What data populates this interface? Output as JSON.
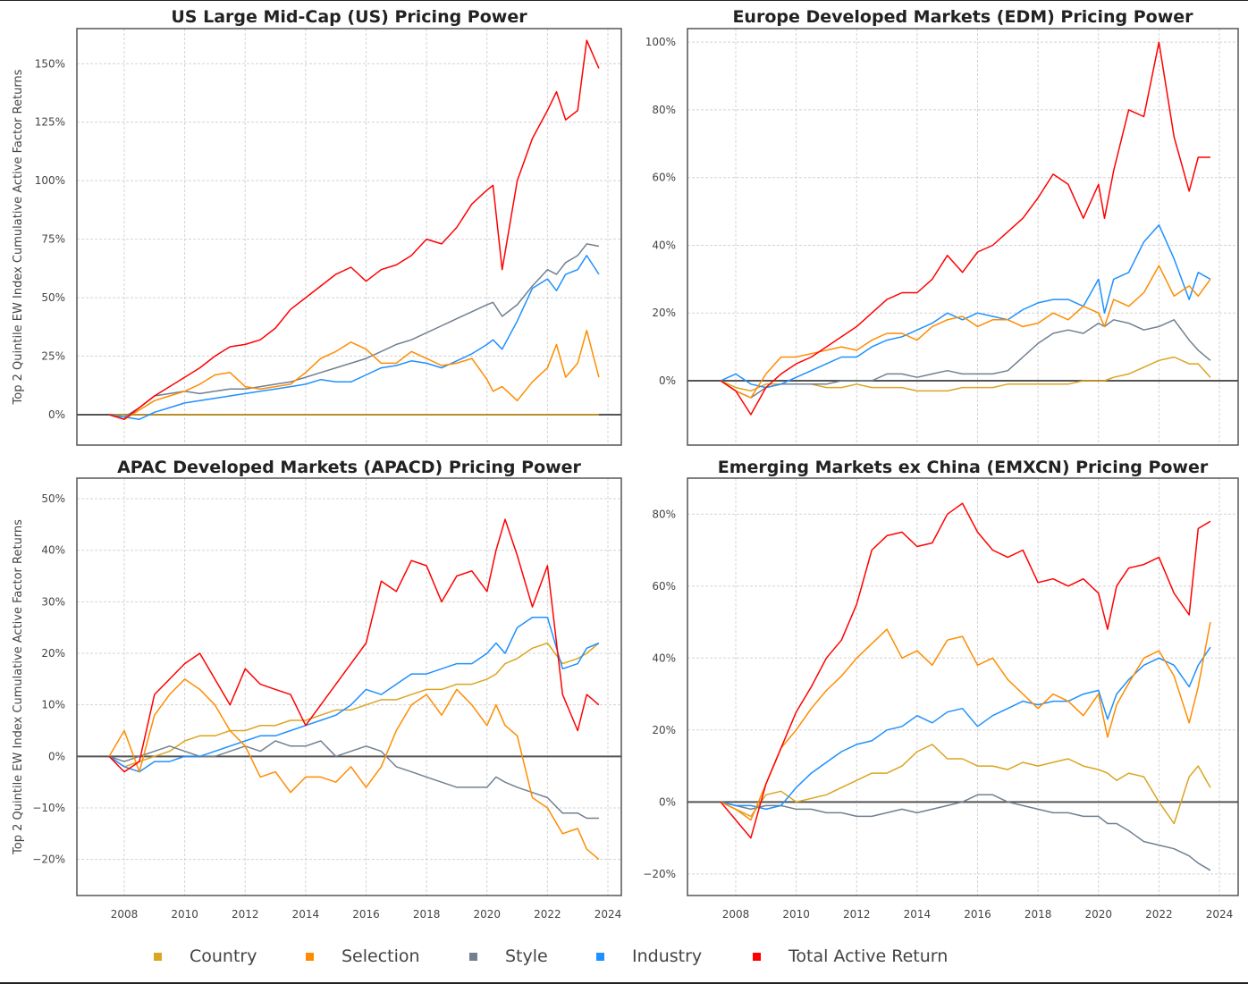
{
  "chart_data": [
    {
      "type": "line",
      "title": "US Large Mid-Cap (US) Pricing Power",
      "xlabel": "",
      "ylabel": "Top 2 Quintile EW Index Cumulative Active Factor Returns",
      "xlim": [
        2006.0,
        2024.5
      ],
      "ylim": [
        -13,
        165
      ],
      "x_ticks": [
        "2008",
        "2010",
        "2012",
        "2014",
        "2016",
        "2018",
        "2020",
        "2022",
        "2024"
      ],
      "x_tick_values": [
        2008,
        2010,
        2012,
        2014,
        2016,
        2018,
        2020,
        2022,
        2024
      ],
      "y_ticks": [
        "0%",
        "25%",
        "50%",
        "75%",
        "100%",
        "125%",
        "150%"
      ],
      "y_tick_values": [
        0,
        25,
        50,
        75,
        100,
        125,
        150
      ],
      "grid": true,
      "x": [
        2007.5,
        2008.0,
        2008.5,
        2009.0,
        2009.5,
        2010.0,
        2010.5,
        2011.0,
        2011.5,
        2012.0,
        2012.5,
        2013.0,
        2013.5,
        2014.0,
        2014.5,
        2015.0,
        2015.5,
        2016.0,
        2016.5,
        2017.0,
        2017.5,
        2018.0,
        2018.5,
        2019.0,
        2019.5,
        2020.0,
        2020.2,
        2020.5,
        2021.0,
        2021.5,
        2022.0,
        2022.3,
        2022.6,
        2023.0,
        2023.3,
        2023.7
      ],
      "series": [
        {
          "name": "Country",
          "values": [
            0,
            0,
            0,
            0,
            0,
            0,
            0,
            0,
            0,
            0,
            0,
            0,
            0,
            0,
            0,
            0,
            0,
            0,
            0,
            0,
            0,
            0,
            0,
            0,
            0,
            0,
            0,
            0,
            0,
            0,
            0,
            0,
            0,
            0,
            0,
            0
          ]
        },
        {
          "name": "Selection",
          "values": [
            0,
            -2,
            2,
            6,
            8,
            10,
            13,
            17,
            18,
            12,
            11,
            12,
            13,
            18,
            24,
            27,
            31,
            28,
            22,
            22,
            27,
            24,
            21,
            22,
            24,
            15,
            10,
            12,
            6,
            14,
            20,
            30,
            16,
            22,
            36,
            16
          ]
        },
        {
          "name": "Style",
          "values": [
            0,
            -1,
            3,
            8,
            9,
            10,
            9,
            10,
            11,
            11,
            12,
            13,
            14,
            16,
            18,
            20,
            22,
            24,
            27,
            30,
            32,
            35,
            38,
            41,
            44,
            47,
            48,
            42,
            47,
            55,
            62,
            60,
            65,
            68,
            73,
            72
          ]
        },
        {
          "name": "Industry",
          "values": [
            0,
            -1,
            -2,
            1,
            3,
            5,
            6,
            7,
            8,
            9,
            10,
            11,
            12,
            13,
            15,
            14,
            14,
            17,
            20,
            21,
            23,
            22,
            20,
            23,
            26,
            30,
            32,
            28,
            40,
            54,
            58,
            53,
            60,
            62,
            68,
            60
          ]
        },
        {
          "name": "Total Active Return",
          "values": [
            0,
            -2,
            3,
            8,
            12,
            16,
            20,
            25,
            29,
            30,
            32,
            37,
            45,
            50,
            55,
            60,
            63,
            57,
            62,
            64,
            68,
            75,
            73,
            80,
            90,
            96,
            98,
            62,
            100,
            118,
            130,
            138,
            126,
            130,
            160,
            148
          ]
        }
      ]
    },
    {
      "type": "line",
      "title": "Europe Developed Markets (EDM) Pricing Power",
      "xlabel": "",
      "ylabel": "",
      "xlim": [
        2006.0,
        2024.5
      ],
      "ylim": [
        -19,
        104
      ],
      "x_ticks": [
        "2008",
        "2010",
        "2012",
        "2014",
        "2016",
        "2018",
        "2020",
        "2022",
        "2024"
      ],
      "x_tick_values": [
        2008,
        2010,
        2012,
        2014,
        2016,
        2018,
        2020,
        2022,
        2024
      ],
      "y_ticks": [
        "0%",
        "20%",
        "40%",
        "60%",
        "80%",
        "100%"
      ],
      "y_tick_values": [
        0,
        20,
        40,
        60,
        80,
        100
      ],
      "grid": true,
      "x": [
        2007.5,
        2008.0,
        2008.5,
        2009.0,
        2009.5,
        2010.0,
        2010.5,
        2011.0,
        2011.5,
        2012.0,
        2012.5,
        2013.0,
        2013.5,
        2014.0,
        2014.5,
        2015.0,
        2015.5,
        2016.0,
        2016.5,
        2017.0,
        2017.5,
        2018.0,
        2018.5,
        2019.0,
        2019.5,
        2020.0,
        2020.2,
        2020.5,
        2021.0,
        2021.5,
        2022.0,
        2022.5,
        2023.0,
        2023.3,
        2023.7
      ],
      "series": [
        {
          "name": "Country",
          "values": [
            0,
            -2,
            -3,
            -1,
            -1,
            -1,
            -1,
            -2,
            -2,
            -1,
            -2,
            -2,
            -2,
            -3,
            -3,
            -3,
            -2,
            -2,
            -2,
            -1,
            -1,
            -1,
            -1,
            -1,
            0,
            0,
            0,
            1,
            2,
            4,
            6,
            7,
            5,
            5,
            1
          ]
        },
        {
          "name": "Selection",
          "values": [
            0,
            -3,
            -5,
            2,
            7,
            7,
            8,
            9,
            10,
            9,
            12,
            14,
            14,
            12,
            16,
            18,
            19,
            16,
            18,
            18,
            16,
            17,
            20,
            18,
            22,
            20,
            16,
            24,
            22,
            26,
            34,
            25,
            28,
            25,
            30
          ]
        },
        {
          "name": "Style",
          "values": [
            0,
            -3,
            -5,
            -2,
            -1,
            -1,
            -1,
            -1,
            0,
            0,
            0,
            2,
            2,
            1,
            2,
            3,
            2,
            2,
            2,
            3,
            7,
            11,
            14,
            15,
            14,
            17,
            16,
            18,
            17,
            15,
            16,
            18,
            12,
            9,
            6
          ]
        },
        {
          "name": "Industry",
          "values": [
            0,
            2,
            -1,
            -2,
            -1,
            1,
            3,
            5,
            7,
            7,
            10,
            12,
            13,
            15,
            17,
            20,
            18,
            20,
            19,
            18,
            21,
            23,
            24,
            24,
            22,
            30,
            20,
            30,
            32,
            41,
            46,
            36,
            24,
            32,
            30
          ]
        },
        {
          "name": "Total Active Return",
          "values": [
            0,
            -3,
            -10,
            -2,
            2,
            5,
            7,
            10,
            13,
            16,
            20,
            24,
            26,
            26,
            30,
            37,
            32,
            38,
            40,
            44,
            48,
            54,
            61,
            58,
            48,
            58,
            48,
            62,
            80,
            78,
            100,
            72,
            56,
            66,
            66
          ]
        }
      ]
    },
    {
      "type": "line",
      "title": "APAC Developed Markets (APACD) Pricing Power",
      "xlabel": "",
      "ylabel": "Top 2 Quintile EW Index Cumulative Active Factor Returns",
      "xlim": [
        2006.0,
        2024.5
      ],
      "ylim": [
        -27,
        54
      ],
      "x_ticks": [
        "2008",
        "2010",
        "2012",
        "2014",
        "2016",
        "2018",
        "2020",
        "2022",
        "2024"
      ],
      "x_tick_values": [
        2008,
        2010,
        2012,
        2014,
        2016,
        2018,
        2020,
        2022,
        2024
      ],
      "y_ticks": [
        "−20%",
        "−10%",
        "0%",
        "10%",
        "20%",
        "30%",
        "40%",
        "50%"
      ],
      "y_tick_values": [
        -20,
        -10,
        0,
        10,
        20,
        30,
        40,
        50
      ],
      "grid": true,
      "x": [
        2007.5,
        2008.0,
        2008.5,
        2009.0,
        2009.5,
        2010.0,
        2010.5,
        2011.0,
        2011.5,
        2012.0,
        2012.5,
        2013.0,
        2013.5,
        2014.0,
        2014.5,
        2015.0,
        2015.5,
        2016.0,
        2016.5,
        2017.0,
        2017.5,
        2018.0,
        2018.5,
        2019.0,
        2019.5,
        2020.0,
        2020.3,
        2020.6,
        2021.0,
        2021.5,
        2022.0,
        2022.5,
        2023.0,
        2023.3,
        2023.7
      ],
      "series": [
        {
          "name": "Country",
          "values": [
            0,
            -2,
            -1,
            0,
            1,
            3,
            4,
            4,
            5,
            5,
            6,
            6,
            7,
            7,
            8,
            9,
            9,
            10,
            11,
            11,
            12,
            13,
            13,
            14,
            14,
            15,
            16,
            18,
            19,
            21,
            22,
            18,
            19,
            20,
            22
          ]
        },
        {
          "name": "Selection",
          "values": [
            0,
            5,
            -3,
            8,
            12,
            15,
            13,
            10,
            5,
            2,
            -4,
            -3,
            -7,
            -4,
            -4,
            -5,
            -2,
            -6,
            -2,
            5,
            10,
            12,
            8,
            13,
            10,
            6,
            10,
            6,
            4,
            -8,
            -10,
            -15,
            -14,
            -18,
            -20
          ]
        },
        {
          "name": "Style",
          "values": [
            0,
            -1,
            0,
            1,
            2,
            1,
            0,
            0,
            1,
            2,
            1,
            3,
            2,
            2,
            3,
            0,
            1,
            2,
            1,
            -2,
            -3,
            -4,
            -5,
            -6,
            -6,
            -6,
            -4,
            -5,
            -6,
            -7,
            -8,
            -11,
            -11,
            -12,
            -12
          ]
        },
        {
          "name": "Industry",
          "values": [
            0,
            -2,
            -3,
            -1,
            -1,
            0,
            0,
            1,
            2,
            3,
            4,
            4,
            5,
            6,
            7,
            8,
            10,
            13,
            12,
            14,
            16,
            16,
            17,
            18,
            18,
            20,
            22,
            20,
            25,
            27,
            27,
            17,
            18,
            21,
            22
          ]
        },
        {
          "name": "Total Active Return",
          "values": [
            0,
            -3,
            -1,
            12,
            15,
            18,
            20,
            15,
            10,
            17,
            14,
            13,
            12,
            6,
            10,
            14,
            18,
            22,
            34,
            32,
            38,
            37,
            30,
            35,
            36,
            32,
            40,
            46,
            39,
            29,
            37,
            12,
            5,
            12,
            10
          ]
        }
      ]
    },
    {
      "type": "line",
      "title": "Emerging Markets ex China (EMXCN) Pricing Power",
      "xlabel": "",
      "ylabel": "",
      "xlim": [
        2006.0,
        2024.5
      ],
      "ylim": [
        -26,
        90
      ],
      "x_ticks": [
        "2008",
        "2010",
        "2012",
        "2014",
        "2016",
        "2018",
        "2020",
        "2022",
        "2024"
      ],
      "x_tick_values": [
        2008,
        2010,
        2012,
        2014,
        2016,
        2018,
        2020,
        2022,
        2024
      ],
      "y_ticks": [
        "−20%",
        "0%",
        "20%",
        "40%",
        "60%",
        "80%"
      ],
      "y_tick_values": [
        -20,
        0,
        20,
        40,
        60,
        80
      ],
      "grid": true,
      "x": [
        2007.5,
        2008.0,
        2008.5,
        2009.0,
        2009.5,
        2010.0,
        2010.5,
        2011.0,
        2011.5,
        2012.0,
        2012.5,
        2013.0,
        2013.5,
        2014.0,
        2014.5,
        2015.0,
        2015.5,
        2016.0,
        2016.5,
        2017.0,
        2017.5,
        2018.0,
        2018.5,
        2019.0,
        2019.5,
        2020.0,
        2020.3,
        2020.6,
        2021.0,
        2021.5,
        2022.0,
        2022.5,
        2023.0,
        2023.3,
        2023.7
      ],
      "series": [
        {
          "name": "Country",
          "values": [
            0,
            -2,
            -4,
            2,
            3,
            0,
            1,
            2,
            4,
            6,
            8,
            8,
            10,
            14,
            16,
            12,
            12,
            10,
            10,
            9,
            11,
            10,
            11,
            12,
            10,
            9,
            8,
            6,
            8,
            7,
            0,
            -6,
            7,
            10,
            4
          ]
        },
        {
          "name": "Selection",
          "values": [
            0,
            -2,
            -5,
            5,
            15,
            20,
            26,
            31,
            35,
            40,
            44,
            48,
            40,
            42,
            38,
            45,
            46,
            38,
            40,
            34,
            30,
            26,
            30,
            28,
            24,
            30,
            18,
            27,
            33,
            40,
            42,
            35,
            22,
            32,
            50
          ]
        },
        {
          "name": "Style",
          "values": [
            0,
            -1,
            -2,
            -1,
            -1,
            -2,
            -2,
            -3,
            -3,
            -4,
            -4,
            -3,
            -2,
            -3,
            -2,
            -1,
            0,
            2,
            2,
            0,
            -1,
            -2,
            -3,
            -3,
            -4,
            -4,
            -6,
            -6,
            -8,
            -11,
            -12,
            -13,
            -15,
            -17,
            -19
          ]
        },
        {
          "name": "Industry",
          "values": [
            0,
            -1,
            -1,
            -2,
            -1,
            4,
            8,
            11,
            14,
            16,
            17,
            20,
            21,
            24,
            22,
            25,
            26,
            21,
            24,
            26,
            28,
            27,
            28,
            28,
            30,
            31,
            23,
            30,
            34,
            38,
            40,
            38,
            32,
            38,
            43
          ]
        },
        {
          "name": "Total Active Return",
          "values": [
            0,
            -5,
            -10,
            5,
            15,
            25,
            32,
            40,
            45,
            55,
            70,
            74,
            75,
            71,
            72,
            80,
            83,
            75,
            70,
            68,
            70,
            61,
            62,
            60,
            62,
            58,
            48,
            60,
            65,
            66,
            68,
            58,
            52,
            76,
            78
          ]
        }
      ]
    }
  ],
  "legend": {
    "placement": "bottom-center",
    "items": [
      {
        "label": "Country",
        "color": "#daa520"
      },
      {
        "label": "Selection",
        "color": "#ff8c00"
      },
      {
        "label": "Style",
        "color": "#708090"
      },
      {
        "label": "Industry",
        "color": "#1e90ff"
      },
      {
        "label": "Total Active Return",
        "color": "#ff0000"
      }
    ]
  },
  "series_colors": {
    "Country": "#daa520",
    "Selection": "#ff8c00",
    "Style": "#708090",
    "Industry": "#1e90ff",
    "Total Active Return": "#ff0000"
  }
}
